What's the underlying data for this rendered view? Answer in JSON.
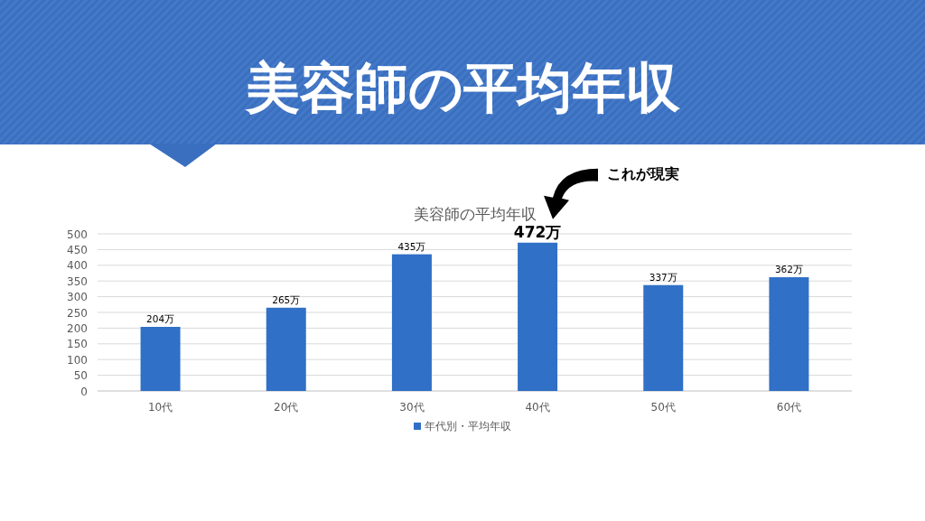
{
  "chart_data": {
    "type": "bar",
    "title": "美容師の平均年収",
    "subtitle": "美容師の平均年収",
    "categories": [
      "10代",
      "20代",
      "30代",
      "40代",
      "50代",
      "60代"
    ],
    "series": [
      {
        "name": "年代別・平均年収",
        "color": "#3070c6",
        "values": [
          204,
          265,
          435,
          472,
          337,
          362
        ],
        "value_labels": [
          "204万",
          "265万",
          "435万",
          "472万",
          "337万",
          "362万"
        ]
      }
    ],
    "ylim": [
      0,
      500
    ],
    "yticks": [
      0,
      50,
      100,
      150,
      200,
      250,
      300,
      350,
      400,
      450,
      500
    ],
    "grid": "y",
    "legend": "bottom",
    "annotations": [
      "これが現実"
    ]
  }
}
